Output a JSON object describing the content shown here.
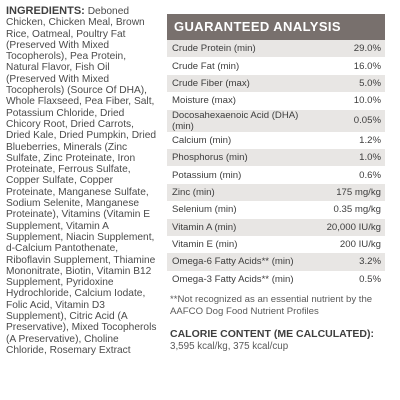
{
  "ingredients": {
    "heading": "INGREDIENTS:",
    "text": "Deboned Chicken, Chicken Meal, Brown Rice, Oatmeal, Poultry Fat (Preserved With Mixed Tocopherols), Pea Protein, Natural Flavor, Fish Oil (Preserved With Mixed Tocopherols) (Source Of DHA), Whole Flaxseed, Pea Fiber, Salt, Potassium Chloride, Dried Chicory Root, Dried Carrots, Dried Kale, Dried Pumpkin, Dried Blueberries, Minerals (Zinc Sulfate, Zinc Proteinate, Iron Proteinate, Ferrous Sulfate, Copper Sulfate, Copper Proteinate, Manganese Sulfate, Sodium Selenite, Manganese Proteinate), Vitamins (Vitamin E Supplement, Vitamin A Supplement, Niacin Supplement, d-Calcium Pantothenate, Riboflavin Supplement, Thiamine Mononitrate, Biotin, Vitamin B12 Supplement, Pyridoxine Hydrochloride, Calcium Iodate, Folic Acid, Vitamin D3 Supplement), Citric Acid (A Preservative), Mixed Tocopherols (A Preservative), Choline Chloride, Rosemary Extract"
  },
  "analysis": {
    "heading": "GUARANTEED ANALYSIS",
    "rows": [
      {
        "label": "Crude Protein (min)",
        "value": "29.0%"
      },
      {
        "label": "Crude Fat (min)",
        "value": "16.0%"
      },
      {
        "label": "Crude Fiber (max)",
        "value": "5.0%"
      },
      {
        "label": "Moisture (max)",
        "value": "10.0%"
      },
      {
        "label": "Docosahexaenoic Acid (DHA) (min)",
        "value": "0.05%"
      },
      {
        "label": "Calcium (min)",
        "value": "1.2%"
      },
      {
        "label": "Phosphorus (min)",
        "value": "1.0%"
      },
      {
        "label": "Potassium (min)",
        "value": "0.6%"
      },
      {
        "label": "Zinc (min)",
        "value": "175 mg/kg"
      },
      {
        "label": "Selenium (min)",
        "value": "0.35 mg/kg"
      },
      {
        "label": "Vitamin A (min)",
        "value": "20,000 IU/kg"
      },
      {
        "label": "Vitamin E (min)",
        "value": "200 IU/kg"
      },
      {
        "label": "Omega-6 Fatty Acids** (min)",
        "value": "3.2%"
      },
      {
        "label": "Omega-3 Fatty Acids** (min)",
        "value": "0.5%"
      }
    ],
    "footnote": "**Not recognized as an essential nutrient by the AAFCO Dog Food Nutrient Profiles"
  },
  "calorie": {
    "heading": "CALORIE CONTENT (ME CALCULATED):",
    "value": "3,595 kcal/kg, 375 kcal/cup"
  }
}
